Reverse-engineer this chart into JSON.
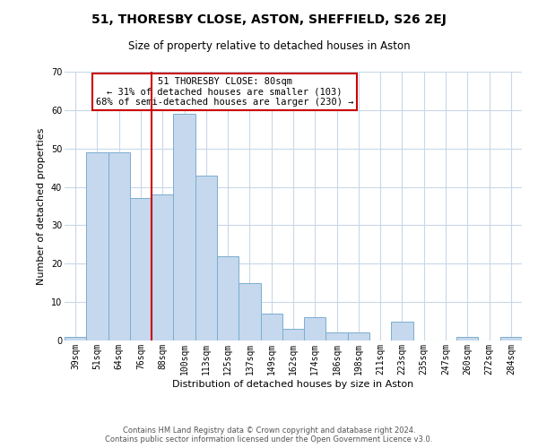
{
  "title": "51, THORESBY CLOSE, ASTON, SHEFFIELD, S26 2EJ",
  "subtitle": "Size of property relative to detached houses in Aston",
  "xlabel": "Distribution of detached houses by size in Aston",
  "ylabel": "Number of detached properties",
  "footer_line1": "Contains HM Land Registry data © Crown copyright and database right 2024.",
  "footer_line2": "Contains public sector information licensed under the Open Government Licence v3.0.",
  "bin_labels": [
    "39sqm",
    "51sqm",
    "64sqm",
    "76sqm",
    "88sqm",
    "100sqm",
    "113sqm",
    "125sqm",
    "137sqm",
    "149sqm",
    "162sqm",
    "174sqm",
    "186sqm",
    "198sqm",
    "211sqm",
    "223sqm",
    "235sqm",
    "247sqm",
    "260sqm",
    "272sqm",
    "284sqm"
  ],
  "bin_values": [
    1,
    49,
    49,
    37,
    38,
    59,
    43,
    22,
    15,
    7,
    3,
    6,
    2,
    2,
    0,
    5,
    0,
    0,
    1,
    0,
    1
  ],
  "bar_color": "#c5d8ed",
  "bar_edge_color": "#7aaed0",
  "ylim": [
    0,
    70
  ],
  "yticks": [
    0,
    10,
    20,
    30,
    40,
    50,
    60,
    70
  ],
  "vline_color": "#cc0000",
  "annotation_title": "51 THORESBY CLOSE: 80sqm",
  "annotation_line1": "← 31% of detached houses are smaller (103)",
  "annotation_line2": "68% of semi-detached houses are larger (230) →",
  "annotation_box_color": "#ffffff",
  "annotation_box_edge": "#cc0000",
  "bg_color": "#ffffff",
  "grid_color": "#c8d8e8",
  "title_fontsize": 10,
  "subtitle_fontsize": 8.5,
  "axis_label_fontsize": 8,
  "tick_fontsize": 7,
  "annotation_fontsize": 7.5,
  "footer_fontsize": 6
}
